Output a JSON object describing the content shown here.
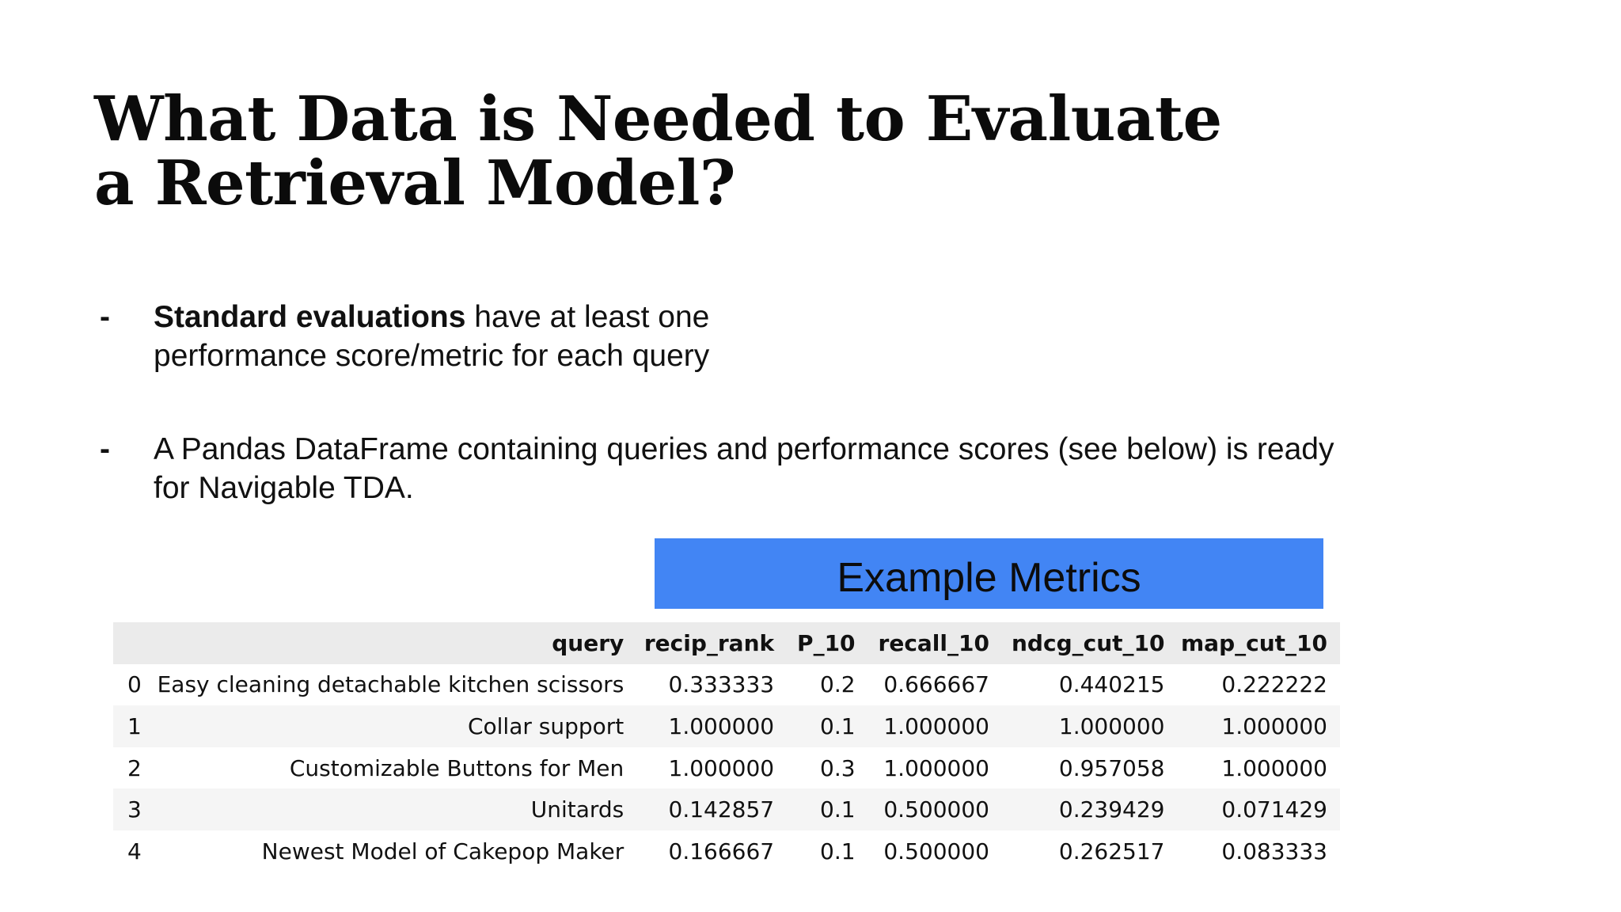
{
  "slide": {
    "title": "What Data is Needed to Evaluate a Retrieval Model?"
  },
  "bullets": [
    {
      "marker": "-",
      "bold_lead": "Standard evaluations",
      "text": " have at least one performance score/metric for each query"
    },
    {
      "marker": "-",
      "bold_lead": "",
      "text": "A Pandas DataFrame containing queries and performance scores (see below) is ready for Navigable TDA."
    }
  ],
  "banner": {
    "label": "Example Metrics",
    "color": "#4285f4"
  },
  "table": {
    "columns": [
      "",
      "query",
      "recip_rank",
      "P_10",
      "recall_10",
      "ndcg_cut_10",
      "map_cut_10"
    ],
    "rows": [
      [
        "0",
        "Easy cleaning detachable kitchen scissors",
        "0.333333",
        "0.2",
        "0.666667",
        "0.440215",
        "0.222222"
      ],
      [
        "1",
        "Collar support",
        "1.000000",
        "0.1",
        "1.000000",
        "1.000000",
        "1.000000"
      ],
      [
        "2",
        "Customizable Buttons for Men",
        "1.000000",
        "0.3",
        "1.000000",
        "0.957058",
        "1.000000"
      ],
      [
        "3",
        "Unitards",
        "0.142857",
        "0.1",
        "0.500000",
        "0.239429",
        "0.071429"
      ],
      [
        "4",
        "Newest Model of Cakepop Maker",
        "0.166667",
        "0.1",
        "0.500000",
        "0.262517",
        "0.083333"
      ]
    ]
  }
}
